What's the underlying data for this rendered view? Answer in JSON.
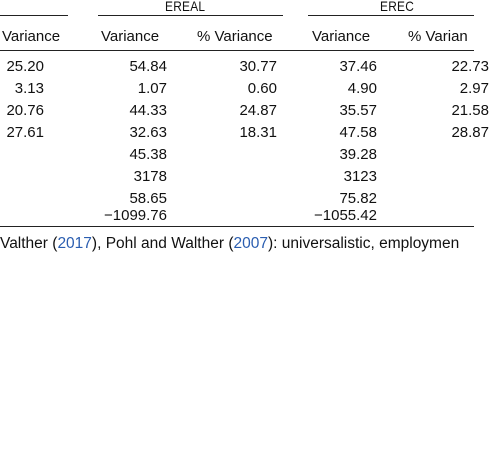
{
  "groups": {
    "ereal": "EREAL",
    "erec": "EREC"
  },
  "headers": {
    "col0": "Variance",
    "col1": "Variance",
    "col2": "% Variance",
    "col3": "Variance",
    "col4": "% Varian"
  },
  "rows": [
    [
      "25.20",
      "54.84",
      "30.77",
      "37.46",
      "22.73"
    ],
    [
      "3.13",
      "1.07",
      "0.60",
      "4.90",
      "2.97"
    ],
    [
      "20.76",
      "44.33",
      "24.87",
      "35.57",
      "21.58"
    ],
    [
      "27.61",
      "32.63",
      "18.31",
      "47.58",
      "28.87"
    ],
    [
      "",
      "45.38",
      "",
      "39.28",
      ""
    ],
    [
      "",
      "3178",
      "",
      "3123",
      ""
    ],
    [
      "",
      "58.65",
      "",
      "75.82",
      ""
    ],
    [
      "",
      "−1099.76",
      "",
      "−1055.42",
      ""
    ]
  ],
  "footnote": {
    "p1": "Valther (",
    "y1": "2017",
    "p2": "), Pohl and Walther (",
    "y2": "2007",
    "p3": "): universalistic, employmen"
  }
}
